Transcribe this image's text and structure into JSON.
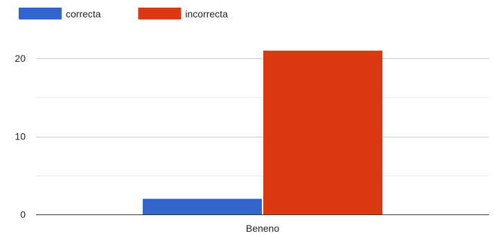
{
  "chart_data": {
    "type": "bar",
    "categories": [
      "Beneno"
    ],
    "series": [
      {
        "name": "correcta",
        "values": [
          2
        ],
        "color": "#3366cc"
      },
      {
        "name": "incorrecta",
        "values": [
          21
        ],
        "color": "#dc3912"
      }
    ],
    "yticks": [
      {
        "value": 0,
        "label": "0"
      },
      {
        "value": 10,
        "label": "10"
      },
      {
        "value": 20,
        "label": "20"
      }
    ],
    "ylim": [
      0,
      25
    ],
    "grid": true,
    "legend_position": "top-left",
    "title": "",
    "xlabel": "",
    "ylabel": ""
  }
}
